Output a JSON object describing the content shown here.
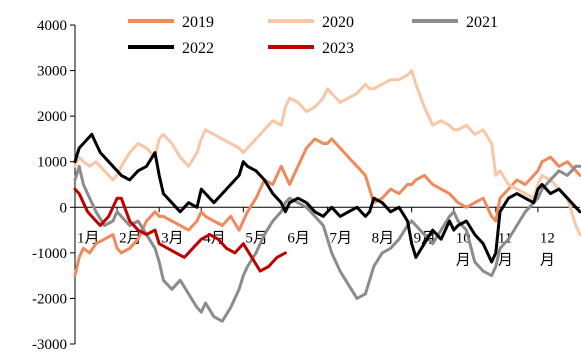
{
  "chart_data": {
    "type": "line",
    "title": "",
    "xlabel": "",
    "ylabel": "",
    "ylim": [
      -3000,
      4000
    ],
    "yticks": [
      -3000,
      -2000,
      -1000,
      0,
      1000,
      2000,
      3000,
      4000
    ],
    "x_ticks": [
      "1月",
      "2月",
      "3月",
      "4月",
      "5月",
      "6月",
      "7月",
      "8月",
      "9月",
      "10\n月",
      "11\n月",
      "12\n月"
    ],
    "x_unit": "month of year (1 = Jan start, 13 = Dec end)",
    "xlim": [
      1,
      13
    ],
    "legend": "top",
    "grid": false,
    "series": [
      {
        "name": "2019",
        "color": "#F08A5D",
        "x": [
          1.0,
          1.1,
          1.2,
          1.35,
          1.5,
          1.7,
          1.9,
          2.0,
          2.1,
          2.3,
          2.5,
          2.7,
          2.9,
          3.0,
          3.1,
          3.3,
          3.5,
          3.7,
          3.9,
          4.0,
          4.1,
          4.3,
          4.5,
          4.7,
          4.9,
          5.0,
          5.1,
          5.3,
          5.5,
          5.7,
          5.9,
          6.0,
          6.1,
          6.3,
          6.5,
          6.7,
          6.9,
          7.0,
          7.1,
          7.3,
          7.5,
          7.7,
          7.9,
          8.0,
          8.1,
          8.3,
          8.5,
          8.7,
          8.9,
          9.0,
          9.1,
          9.3,
          9.5,
          9.7,
          9.9,
          10.0,
          10.1,
          10.3,
          10.5,
          10.7,
          10.9,
          11.0,
          11.1,
          11.3,
          11.5,
          11.7,
          11.9,
          12.0,
          12.1,
          12.3,
          12.5,
          12.7,
          12.9,
          13.0
        ],
        "y": [
          -1500,
          -1100,
          -900,
          -1000,
          -800,
          -700,
          -600,
          -900,
          -1000,
          -900,
          -700,
          -300,
          -100,
          -200,
          -200,
          -300,
          -400,
          -500,
          -300,
          -100,
          -200,
          -300,
          -400,
          -200,
          -500,
          -300,
          -100,
          200,
          600,
          500,
          900,
          700,
          500,
          900,
          1300,
          1500,
          1400,
          1400,
          1500,
          1300,
          1100,
          900,
          700,
          400,
          100,
          200,
          400,
          300,
          500,
          500,
          600,
          700,
          500,
          400,
          300,
          200,
          100,
          0,
          100,
          200,
          -200,
          -300,
          200,
          400,
          600,
          500,
          700,
          800,
          1000,
          1100,
          900,
          1000,
          800,
          700
        ]
      },
      {
        "name": "2020",
        "color": "#F8C7A8",
        "x": [
          1.0,
          1.1,
          1.2,
          1.35,
          1.5,
          1.7,
          1.9,
          2.0,
          2.1,
          2.3,
          2.5,
          2.7,
          2.9,
          3.0,
          3.1,
          3.3,
          3.5,
          3.7,
          3.9,
          4.0,
          4.1,
          4.3,
          4.5,
          4.7,
          4.9,
          5.0,
          5.1,
          5.3,
          5.5,
          5.7,
          5.9,
          6.0,
          6.1,
          6.3,
          6.5,
          6.7,
          6.9,
          7.0,
          7.1,
          7.3,
          7.5,
          7.7,
          7.9,
          8.0,
          8.1,
          8.3,
          8.5,
          8.7,
          8.9,
          9.0,
          9.1,
          9.3,
          9.5,
          9.7,
          9.9,
          10.0,
          10.1,
          10.3,
          10.5,
          10.7,
          10.9,
          11.0,
          11.1,
          11.3,
          11.5,
          11.7,
          11.9,
          12.0,
          12.1,
          12.3,
          12.5,
          12.7,
          12.9,
          13.0
        ],
        "y": [
          900,
          1100,
          1000,
          900,
          1000,
          800,
          600,
          700,
          900,
          1200,
          1400,
          1300,
          1100,
          1500,
          1600,
          1400,
          1100,
          900,
          1200,
          1500,
          1700,
          1600,
          1500,
          1400,
          1300,
          1200,
          1300,
          1500,
          1700,
          1900,
          1800,
          2200,
          2400,
          2300,
          2100,
          2200,
          2400,
          2600,
          2500,
          2300,
          2400,
          2500,
          2700,
          2600,
          2600,
          2700,
          2800,
          2800,
          2900,
          3000,
          2700,
          2200,
          1800,
          1900,
          1800,
          1700,
          1700,
          1800,
          1600,
          1700,
          1400,
          700,
          800,
          500,
          400,
          300,
          200,
          500,
          700,
          600,
          400,
          200,
          -400,
          -600
        ]
      },
      {
        "name": "2021",
        "color": "#8C8C8C",
        "x": [
          1.0,
          1.1,
          1.2,
          1.35,
          1.5,
          1.7,
          1.9,
          2.0,
          2.1,
          2.3,
          2.5,
          2.7,
          2.9,
          3.0,
          3.1,
          3.3,
          3.5,
          3.7,
          3.9,
          4.0,
          4.1,
          4.3,
          4.5,
          4.7,
          4.9,
          5.0,
          5.1,
          5.3,
          5.5,
          5.7,
          5.9,
          6.0,
          6.1,
          6.3,
          6.5,
          6.7,
          6.9,
          7.0,
          7.1,
          7.3,
          7.5,
          7.7,
          7.9,
          8.0,
          8.1,
          8.3,
          8.5,
          8.7,
          8.9,
          9.0,
          9.1,
          9.3,
          9.5,
          9.7,
          9.9,
          10.0,
          10.1,
          10.3,
          10.5,
          10.7,
          10.9,
          11.0,
          11.1,
          11.3,
          11.5,
          11.7,
          11.9,
          12.0,
          12.1,
          12.3,
          12.5,
          12.7,
          12.9,
          13.0
        ],
        "y": [
          600,
          900,
          500,
          200,
          -100,
          -400,
          -300,
          -100,
          -200,
          -400,
          -300,
          -600,
          -900,
          -1200,
          -1600,
          -1800,
          -1600,
          -1900,
          -2200,
          -2300,
          -2100,
          -2400,
          -2500,
          -2200,
          -1800,
          -1500,
          -1300,
          -1000,
          -600,
          -300,
          -100,
          100,
          200,
          100,
          0,
          -200,
          -400,
          -700,
          -1000,
          -1400,
          -1700,
          -2000,
          -1900,
          -1600,
          -1300,
          -1000,
          -900,
          -700,
          -400,
          -300,
          -400,
          -600,
          -800,
          -500,
          -200,
          -100,
          -300,
          -500,
          -1200,
          -1400,
          -1500,
          -1300,
          -900,
          -700,
          -400,
          -100,
          100,
          200,
          400,
          600,
          800,
          700,
          900,
          900
        ]
      },
      {
        "name": "2022",
        "color": "#000000",
        "x": [
          1.0,
          1.1,
          1.2,
          1.3,
          1.4,
          1.5,
          1.6,
          1.8,
          2.0,
          2.1,
          2.3,
          2.5,
          2.7,
          2.9,
          3.0,
          3.1,
          3.3,
          3.5,
          3.7,
          3.9,
          4.0,
          4.1,
          4.3,
          4.5,
          4.7,
          4.9,
          5.0,
          5.1,
          5.3,
          5.5,
          5.7,
          5.9,
          6.0,
          6.1,
          6.3,
          6.5,
          6.7,
          6.9,
          7.0,
          7.1,
          7.3,
          7.5,
          7.7,
          7.9,
          8.0,
          8.1,
          8.3,
          8.5,
          8.7,
          8.9,
          9.0,
          9.1,
          9.3,
          9.5,
          9.7,
          9.9,
          10.0,
          10.1,
          10.3,
          10.5,
          10.7,
          10.9,
          11.0,
          11.1,
          11.3,
          11.5,
          11.7,
          11.9,
          12.0,
          12.1,
          12.3,
          12.5,
          12.7,
          12.9,
          13.0
        ],
        "y": [
          1000,
          1300,
          1400,
          1500,
          1600,
          1400,
          1200,
          1000,
          800,
          700,
          600,
          800,
          900,
          1200,
          700,
          300,
          100,
          -100,
          100,
          0,
          400,
          300,
          100,
          300,
          500,
          700,
          1000,
          900,
          800,
          600,
          300,
          100,
          -100,
          100,
          200,
          100,
          -100,
          -200,
          -100,
          0,
          -200,
          -100,
          0,
          -200,
          -100,
          200,
          100,
          -100,
          0,
          -300,
          -800,
          -1100,
          -800,
          -500,
          -700,
          -300,
          -500,
          -400,
          -300,
          -600,
          -800,
          -1200,
          -1000,
          -100,
          200,
          300,
          200,
          100,
          400,
          500,
          300,
          400,
          200,
          0,
          -100
        ]
      },
      {
        "name": "2023",
        "color": "#C00000",
        "x": [
          1.0,
          1.1,
          1.2,
          1.3,
          1.4,
          1.5,
          1.6,
          1.8,
          2.0,
          2.1,
          2.3,
          2.5,
          2.7,
          2.9,
          3.0,
          3.2,
          3.4,
          3.6,
          3.8,
          4.0,
          4.2,
          4.4,
          4.6,
          4.8,
          5.0,
          5.2,
          5.4,
          5.6,
          5.8,
          6.0
        ],
        "y": [
          400,
          300,
          100,
          -100,
          -200,
          -300,
          -400,
          -200,
          200,
          200,
          -300,
          -500,
          -600,
          -500,
          -800,
          -900,
          -1000,
          -1100,
          -900,
          -700,
          -600,
          -700,
          -900,
          -1000,
          -800,
          -1100,
          -1400,
          -1300,
          -1100,
          -1000
        ]
      }
    ]
  }
}
